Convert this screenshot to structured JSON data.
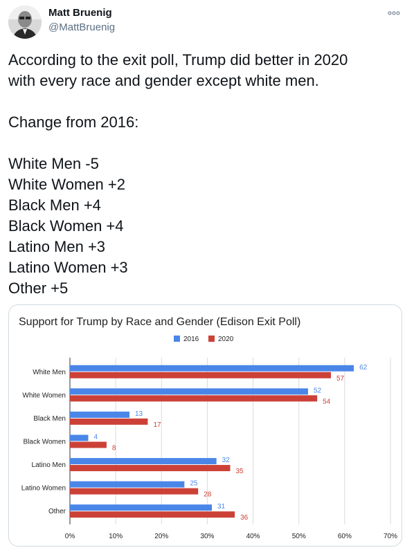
{
  "tweet": {
    "author_name": "Matt Bruenig",
    "author_handle": "@MattBruenig",
    "more_icon": "more-icon",
    "text_lines": [
      "According to the exit poll, Trump did better in 2020",
      "with every race and gender except white men.",
      "",
      "Change from 2016:",
      "",
      "White Men -5",
      "White Women +2",
      "Black Men +4",
      "Black Women +4",
      "Latino Men +3",
      "Latino Women +3",
      "Other +5"
    ]
  },
  "chart_data": {
    "type": "bar",
    "orientation": "horizontal",
    "title": "Support for Trump by Race and Gender (Edison Exit Poll)",
    "xlabel": "",
    "ylabel": "",
    "categories": [
      "White Men",
      "White Women",
      "Black Men",
      "Black Women",
      "Latino Men",
      "Latino Women",
      "Other"
    ],
    "series": [
      {
        "name": "2016",
        "color": "#4a86e8",
        "values": [
          62,
          52,
          13,
          4,
          32,
          25,
          31
        ]
      },
      {
        "name": "2020",
        "color": "#cc4137",
        "values": [
          57,
          54,
          17,
          8,
          35,
          28,
          36
        ]
      }
    ],
    "xlim": [
      0,
      70
    ],
    "xticks": [
      "0%",
      "10%",
      "20%",
      "30%",
      "40%",
      "50%",
      "60%",
      "70%"
    ],
    "grid": true,
    "legend_position": "top"
  }
}
